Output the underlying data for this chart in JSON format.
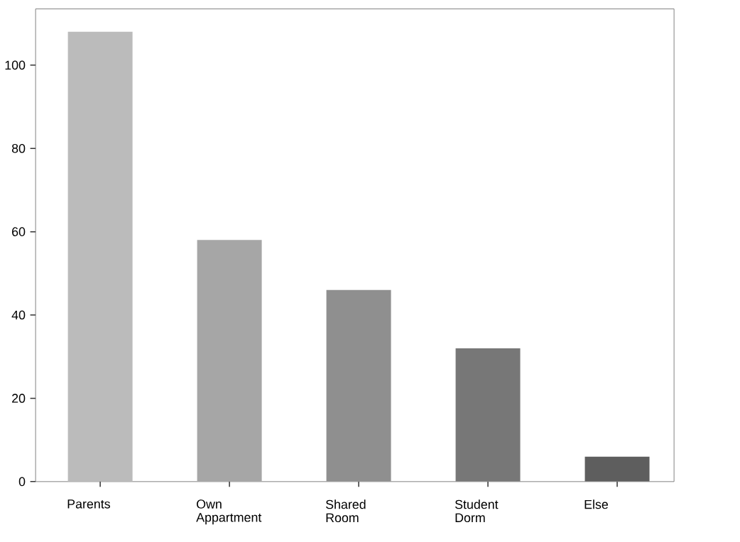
{
  "chart_data": {
    "type": "bar",
    "categories": [
      "Parents",
      "Own Appartment",
      "Shared Room",
      "Student Dorm",
      "Else"
    ],
    "values": [
      108,
      58,
      46,
      32,
      6
    ],
    "colors": [
      "#bbbbbb",
      "#a6a6a6",
      "#8f8f8f",
      "#777777",
      "#5e5e5e"
    ],
    "ylim": [
      0,
      113.5
    ],
    "yticks": [
      0,
      20,
      40,
      60,
      80,
      100
    ],
    "grid": false
  }
}
